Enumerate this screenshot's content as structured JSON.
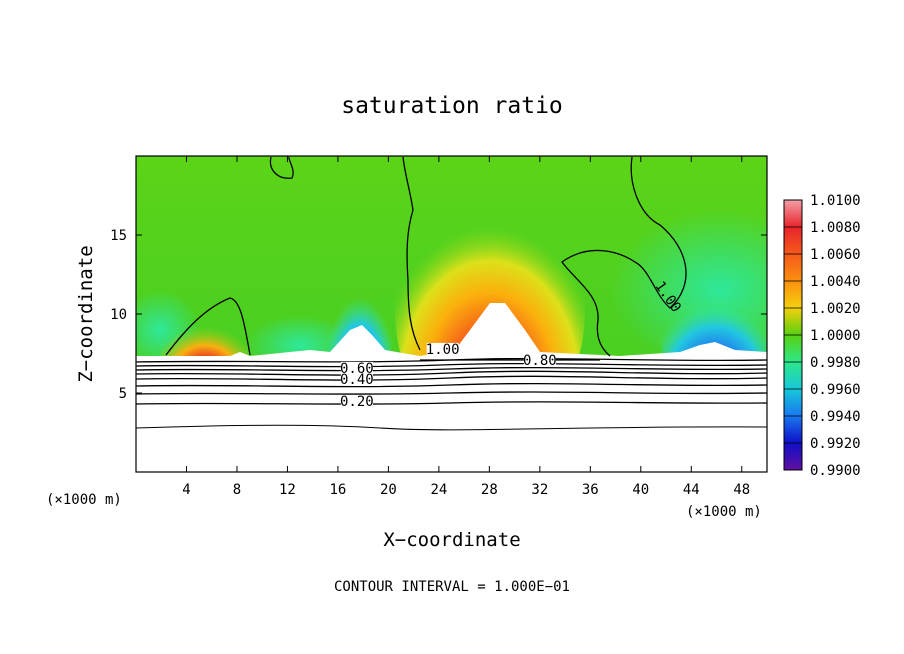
{
  "chart_data": {
    "type": "heatmap",
    "title": "saturation ratio",
    "xlabel": "X−coordinate",
    "ylabel": "Z−coordinate",
    "x_unit_left": "(×1000 m)",
    "x_unit_right": "(×1000 m)",
    "xlim": [
      0,
      50
    ],
    "ylim": [
      0,
      20
    ],
    "x_ticks": [
      4,
      8,
      12,
      16,
      20,
      24,
      28,
      32,
      36,
      40,
      44,
      48
    ],
    "y_ticks": [
      5,
      10,
      15
    ],
    "colorbar": {
      "min": 0.99,
      "max": 1.01,
      "labels": [
        "1.0100",
        "1.0080",
        "1.0060",
        "1.0040",
        "1.0020",
        "1.0000",
        "0.9980",
        "0.9960",
        "0.9940",
        "0.9920",
        "0.9900"
      ],
      "colors": [
        "#f4a0a8",
        "#e8242c",
        "#f65a1c",
        "#fb9010",
        "#f5d00c",
        "#58d010",
        "#2ee88a",
        "#18c8d8",
        "#1878f0",
        "#1010c8",
        "#6010a0"
      ]
    },
    "contour_labels": [
      {
        "text": "1.00",
        "x": 24.3,
        "z": 7.6
      },
      {
        "text": "1.00",
        "x": 42.0,
        "z": 11.0
      },
      {
        "text": "0.80",
        "x": 32.0,
        "z": 6.9
      },
      {
        "text": "0.60",
        "x": 17.5,
        "z": 6.4
      },
      {
        "text": "0.40",
        "x": 17.5,
        "z": 5.7
      },
      {
        "text": "0.20",
        "x": 17.5,
        "z": 4.3
      }
    ],
    "footer": "CONTOUR INTERVAL = 1.000E−01"
  }
}
